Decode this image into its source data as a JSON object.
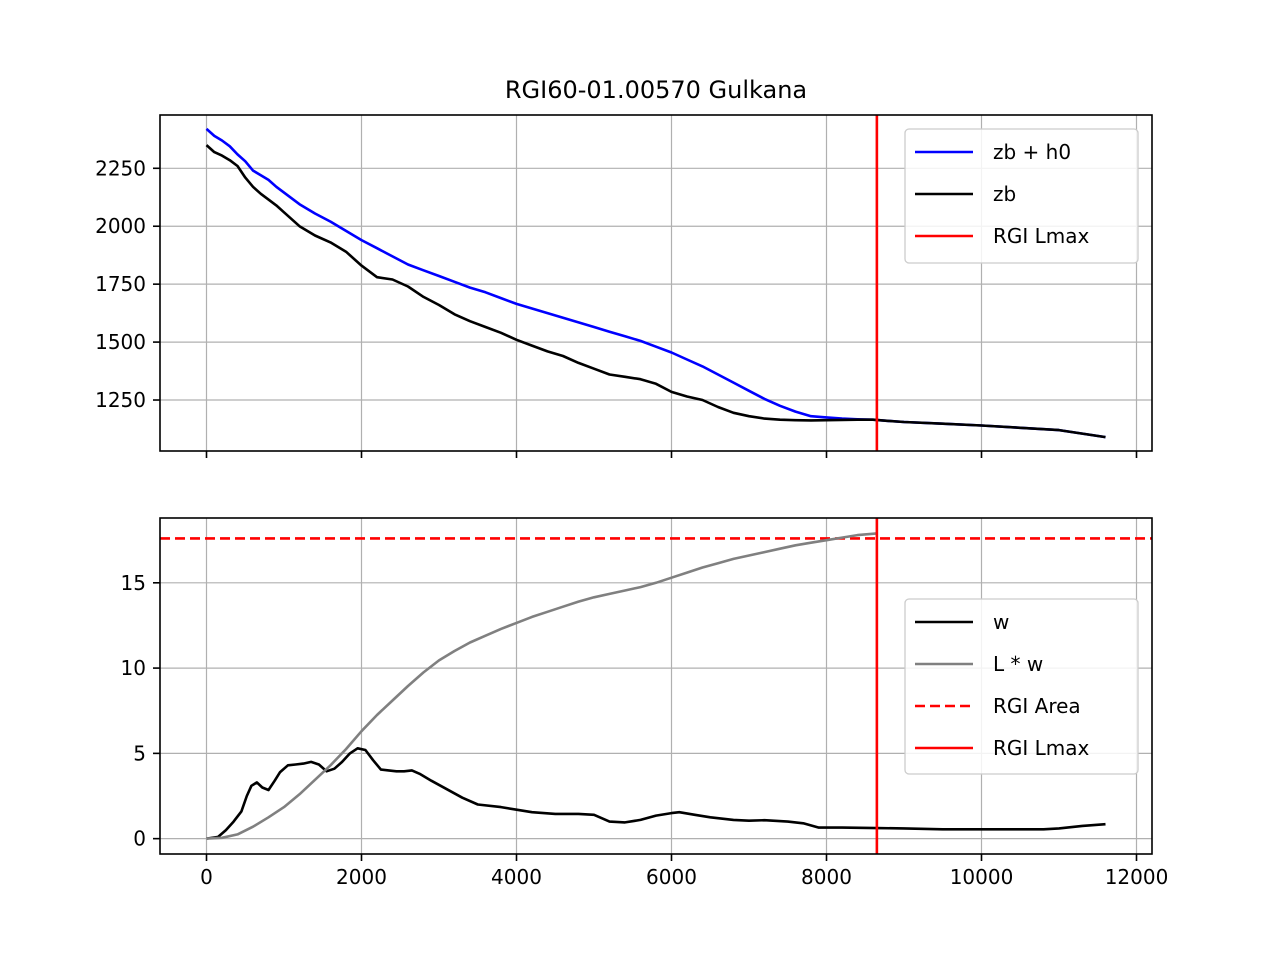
{
  "chart_data": [
    {
      "type": "line",
      "title": "RGI60-01.00570 Gulkana",
      "xlabel": "",
      "ylabel": "",
      "xlim": [
        -600,
        12200
      ],
      "ylim": [
        1030,
        2480
      ],
      "grid": true,
      "legend_position": "top-right",
      "xticks": [
        0,
        2000,
        4000,
        6000,
        8000,
        10000,
        12000
      ],
      "xtick_labels_shown": false,
      "yticks": [
        1250,
        1500,
        1750,
        2000,
        2250
      ],
      "ytick_labels": [
        "1250",
        "1500",
        "1750",
        "2000",
        "2250"
      ],
      "series": [
        {
          "name": "zb + h0",
          "color": "#0000ff",
          "style": "solid",
          "x": [
            0,
            100,
            200,
            300,
            400,
            500,
            600,
            700,
            800,
            900,
            1000,
            1200,
            1400,
            1600,
            1800,
            2000,
            2200,
            2400,
            2600,
            2800,
            3000,
            3200,
            3400,
            3600,
            3800,
            4000,
            4200,
            4400,
            4600,
            4800,
            5000,
            5200,
            5400,
            5600,
            5800,
            6000,
            6200,
            6400,
            6600,
            6800,
            7000,
            7200,
            7400,
            7600,
            7800,
            8000,
            8200,
            8400,
            8600,
            8800,
            9000,
            9500,
            10000,
            10500,
            11000,
            11300,
            11600
          ],
          "y": [
            2420,
            2390,
            2370,
            2345,
            2310,
            2280,
            2240,
            2220,
            2200,
            2170,
            2145,
            2095,
            2055,
            2020,
            1980,
            1940,
            1905,
            1870,
            1835,
            1810,
            1785,
            1760,
            1735,
            1715,
            1690,
            1665,
            1645,
            1625,
            1605,
            1585,
            1565,
            1545,
            1525,
            1505,
            1480,
            1455,
            1425,
            1395,
            1360,
            1325,
            1290,
            1255,
            1225,
            1200,
            1180,
            1175,
            1170,
            1167,
            1165,
            1160,
            1155,
            1148,
            1140,
            1130,
            1120,
            1105,
            1090
          ]
        },
        {
          "name": "zb",
          "color": "#000000",
          "style": "solid",
          "x": [
            0,
            100,
            200,
            300,
            400,
            500,
            600,
            700,
            800,
            900,
            1000,
            1200,
            1400,
            1600,
            1800,
            2000,
            2200,
            2400,
            2600,
            2800,
            3000,
            3200,
            3400,
            3600,
            3800,
            4000,
            4200,
            4400,
            4600,
            4800,
            5000,
            5200,
            5400,
            5600,
            5800,
            6000,
            6200,
            6400,
            6600,
            6800,
            7000,
            7200,
            7400,
            7600,
            7800,
            8000,
            8200,
            8400,
            8600,
            8800,
            9000,
            9500,
            10000,
            10500,
            11000,
            11300,
            11600
          ],
          "y": [
            2350,
            2320,
            2305,
            2285,
            2260,
            2210,
            2170,
            2140,
            2115,
            2090,
            2060,
            2000,
            1960,
            1930,
            1890,
            1830,
            1780,
            1770,
            1740,
            1695,
            1660,
            1620,
            1590,
            1565,
            1540,
            1510,
            1485,
            1460,
            1440,
            1410,
            1385,
            1360,
            1350,
            1340,
            1320,
            1285,
            1265,
            1250,
            1220,
            1195,
            1180,
            1170,
            1165,
            1163,
            1162,
            1163,
            1164,
            1165,
            1165,
            1160,
            1155,
            1148,
            1140,
            1130,
            1120,
            1105,
            1090
          ]
        }
      ],
      "vlines": [
        {
          "name": "RGI Lmax",
          "x": 8650,
          "color": "#ff0000",
          "style": "solid"
        }
      ]
    },
    {
      "type": "line",
      "title": "",
      "xlabel": "",
      "ylabel": "",
      "xlim": [
        -600,
        12200
      ],
      "ylim": [
        -0.9,
        18.8
      ],
      "grid": true,
      "legend_position": "center-right",
      "xticks": [
        0,
        2000,
        4000,
        6000,
        8000,
        10000,
        12000
      ],
      "xtick_labels": [
        "0",
        "2000",
        "4000",
        "6000",
        "8000",
        "10000",
        "12000"
      ],
      "yticks": [
        0,
        5,
        10,
        15
      ],
      "ytick_labels": [
        "0",
        "5",
        "10",
        "15"
      ],
      "series": [
        {
          "name": "w",
          "color": "#000000",
          "style": "solid",
          "x": [
            0,
            150,
            250,
            350,
            450,
            520,
            580,
            650,
            720,
            800,
            880,
            950,
            1050,
            1150,
            1250,
            1350,
            1450,
            1550,
            1650,
            1750,
            1850,
            1950,
            2050,
            2150,
            2250,
            2350,
            2450,
            2550,
            2650,
            2750,
            2900,
            3100,
            3300,
            3500,
            3800,
            4000,
            4200,
            4500,
            4800,
            5000,
            5200,
            5400,
            5600,
            5800,
            6000,
            6100,
            6300,
            6500,
            6800,
            7000,
            7200,
            7500,
            7700,
            7900,
            8200,
            8650,
            9000,
            9500,
            10000,
            10500,
            10800,
            11000,
            11300,
            11600
          ],
          "y": [
            0,
            0.1,
            0.5,
            1.0,
            1.6,
            2.5,
            3.1,
            3.3,
            3.0,
            2.85,
            3.4,
            3.9,
            4.3,
            4.35,
            4.4,
            4.5,
            4.35,
            3.95,
            4.1,
            4.5,
            5.0,
            5.3,
            5.2,
            4.6,
            4.05,
            4.0,
            3.95,
            3.95,
            4.0,
            3.8,
            3.4,
            2.9,
            2.4,
            2.0,
            1.85,
            1.7,
            1.55,
            1.45,
            1.45,
            1.4,
            1.0,
            0.95,
            1.1,
            1.35,
            1.5,
            1.55,
            1.4,
            1.25,
            1.1,
            1.05,
            1.08,
            1.0,
            0.9,
            0.65,
            0.65,
            0.62,
            0.6,
            0.55,
            0.55,
            0.55,
            0.55,
            0.6,
            0.75,
            0.85
          ]
        },
        {
          "name": "L * w",
          "color": "#808080",
          "style": "solid",
          "x": [
            0,
            200,
            400,
            600,
            800,
            1000,
            1200,
            1400,
            1600,
            1800,
            2000,
            2200,
            2400,
            2600,
            2800,
            3000,
            3200,
            3400,
            3600,
            3800,
            4000,
            4200,
            4400,
            4600,
            4800,
            5000,
            5200,
            5400,
            5600,
            5800,
            6000,
            6200,
            6400,
            6600,
            6800,
            7000,
            7200,
            7400,
            7600,
            7800,
            8000,
            8200,
            8400,
            8650
          ],
          "y": [
            0,
            0.05,
            0.25,
            0.7,
            1.25,
            1.85,
            2.6,
            3.45,
            4.3,
            5.25,
            6.3,
            7.25,
            8.1,
            8.95,
            9.75,
            10.45,
            11.0,
            11.5,
            11.9,
            12.3,
            12.65,
            13.0,
            13.3,
            13.6,
            13.9,
            14.15,
            14.35,
            14.55,
            14.75,
            15.0,
            15.3,
            15.6,
            15.9,
            16.15,
            16.4,
            16.6,
            16.8,
            17.0,
            17.2,
            17.35,
            17.5,
            17.65,
            17.8,
            17.9
          ]
        }
      ],
      "hlines": [
        {
          "name": "RGI Area",
          "y": 17.6,
          "color": "#ff0000",
          "style": "dashed"
        }
      ],
      "vlines": [
        {
          "name": "RGI Lmax",
          "x": 8650,
          "color": "#ff0000",
          "style": "solid"
        }
      ]
    }
  ]
}
